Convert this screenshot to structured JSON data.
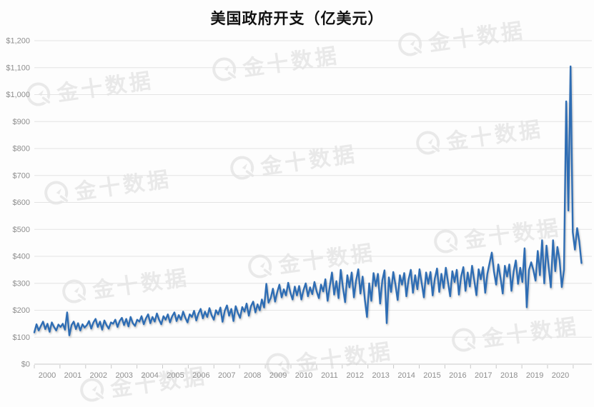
{
  "title": "美国政府开支（亿美元）",
  "watermark": {
    "text": "金十数据",
    "logo": "jin10-clock-logo"
  },
  "chart_data": {
    "type": "line",
    "title": "美国政府开支（亿美元）",
    "unit": "亿美元",
    "frequency": "monthly",
    "x_start": "2000-01",
    "x_end": "2020-11",
    "x_tick_labels": [
      "2000",
      "2001",
      "2002",
      "2003",
      "2004",
      "2005",
      "2006",
      "2007",
      "2008",
      "2009",
      "2010",
      "2011",
      "2012",
      "2013",
      "2014",
      "2015",
      "2016",
      "2017",
      "2018",
      "2019",
      "2020"
    ],
    "y_tick_labels": [
      "$0",
      "$100",
      "$200",
      "$300",
      "$400",
      "$500",
      "$600",
      "$700",
      "$800",
      "$900",
      "$1,000",
      "$1,100",
      "$1,200"
    ],
    "ylim": [
      0,
      1200
    ],
    "y_tick_step": 100,
    "grid": true,
    "legend": false,
    "line_color": "#2e6db4",
    "values": [
      118,
      148,
      125,
      142,
      158,
      130,
      150,
      120,
      155,
      138,
      125,
      147,
      138,
      150,
      128,
      192,
      107,
      145,
      158,
      130,
      152,
      125,
      148,
      136,
      145,
      160,
      132,
      155,
      168,
      138,
      158,
      128,
      162,
      145,
      132,
      155,
      150,
      165,
      138,
      160,
      172,
      145,
      168,
      140,
      175,
      152,
      142,
      165,
      158,
      178,
      148,
      170,
      185,
      152,
      175,
      158,
      188,
      165,
      148,
      178,
      165,
      185,
      155,
      178,
      192,
      160,
      182,
      165,
      195,
      172,
      155,
      185,
      175,
      198,
      162,
      188,
      205,
      170,
      195,
      175,
      208,
      182,
      165,
      200,
      185,
      210,
      157,
      198,
      218,
      180,
      205,
      160,
      215,
      190,
      172,
      212,
      195,
      225,
      180,
      215,
      232,
      192,
      222,
      200,
      240,
      210,
      298,
      228,
      245,
      280,
      232,
      268,
      295,
      248,
      278,
      255,
      302,
      265,
      240,
      288,
      255,
      290,
      240,
      275,
      300,
      252,
      285,
      260,
      305,
      270,
      245,
      295,
      270,
      315,
      235,
      290,
      340,
      258,
      308,
      245,
      350,
      285,
      230,
      330,
      285,
      340,
      248,
      310,
      352,
      262,
      325,
      240,
      175,
      300,
      235,
      338,
      290,
      335,
      225,
      312,
      348,
      152,
      322,
      268,
      342,
      295,
      238,
      330,
      295,
      338,
      252,
      315,
      350,
      265,
      330,
      278,
      352,
      300,
      248,
      340,
      298,
      342,
      255,
      318,
      355,
      268,
      335,
      282,
      358,
      305,
      252,
      345,
      305,
      350,
      258,
      325,
      360,
      272,
      340,
      288,
      365,
      310,
      256,
      352,
      315,
      360,
      265,
      335,
      375,
      414,
      345,
      295,
      370,
      320,
      262,
      365,
      325,
      370,
      272,
      345,
      385,
      298,
      358,
      305,
      430,
      211,
      350,
      378,
      350,
      310,
      420,
      330,
      460,
      300,
      440,
      360,
      285,
      460,
      345,
      435,
      385,
      286,
      350,
      975,
      570,
      1105,
      490,
      425,
      505,
      455,
      375
    ]
  }
}
